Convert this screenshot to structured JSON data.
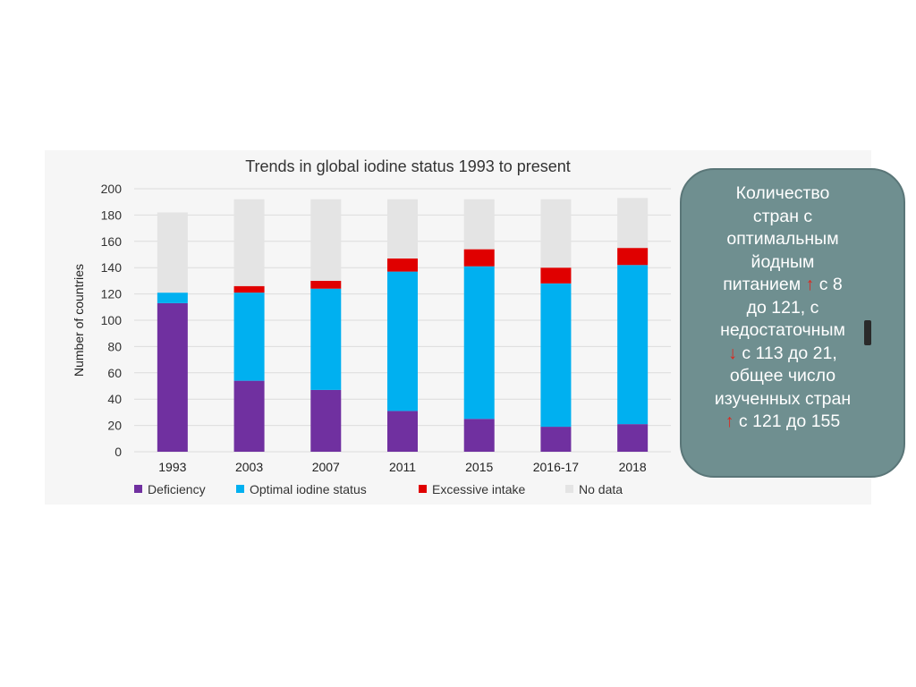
{
  "chart_data": {
    "type": "bar",
    "stacked": true,
    "title": "Trends in global iodine status 1993 to present",
    "xlabel": "",
    "ylabel": "Number of countries",
    "ylim": [
      0,
      200
    ],
    "yticks": [
      0,
      20,
      40,
      60,
      80,
      100,
      120,
      140,
      160,
      180,
      200
    ],
    "grid": true,
    "legend_position": "bottom",
    "categories": [
      "1993",
      "2003",
      "2007",
      "2011",
      "2015",
      "2016-17",
      "2018"
    ],
    "series": [
      {
        "name": "Deficiency",
        "color": "#7030a0",
        "values": [
          113,
          54,
          47,
          31,
          25,
          19,
          21
        ]
      },
      {
        "name": "Optimal iodine status",
        "color": "#00b0f0",
        "values": [
          8,
          67,
          77,
          106,
          116,
          109,
          121
        ]
      },
      {
        "name": "Excessive intake",
        "color": "#e00000",
        "values": [
          0,
          5,
          6,
          10,
          13,
          12,
          13
        ]
      },
      {
        "name": "No data",
        "color": "#e4e4e4",
        "values": [
          61,
          66,
          62,
          45,
          38,
          52,
          38
        ]
      }
    ]
  },
  "info_box": {
    "lines": [
      {
        "before": "Количество",
        "arrow": "",
        "after": ""
      },
      {
        "before": "стран с",
        "arrow": "",
        "after": ""
      },
      {
        "before": "оптимальным",
        "arrow": "",
        "after": ""
      },
      {
        "before": "йодным",
        "arrow": "",
        "after": ""
      },
      {
        "before": "питанием ",
        "arrow": "↑",
        "after": " с 8"
      },
      {
        "before": "до 121, с",
        "arrow": "",
        "after": ""
      },
      {
        "before": "недостаточным",
        "arrow": "",
        "after": ""
      },
      {
        "before": "",
        "arrow": "↓",
        "after": " с 113 до 21,"
      },
      {
        "before": "общее число",
        "arrow": "",
        "after": ""
      },
      {
        "before": "изученных стран",
        "arrow": "",
        "after": ""
      },
      {
        "before": "",
        "arrow": "↑",
        "after": " с 121 до 155"
      }
    ],
    "background_color": "#6f8f90",
    "arrow_color": "#e0251c"
  }
}
